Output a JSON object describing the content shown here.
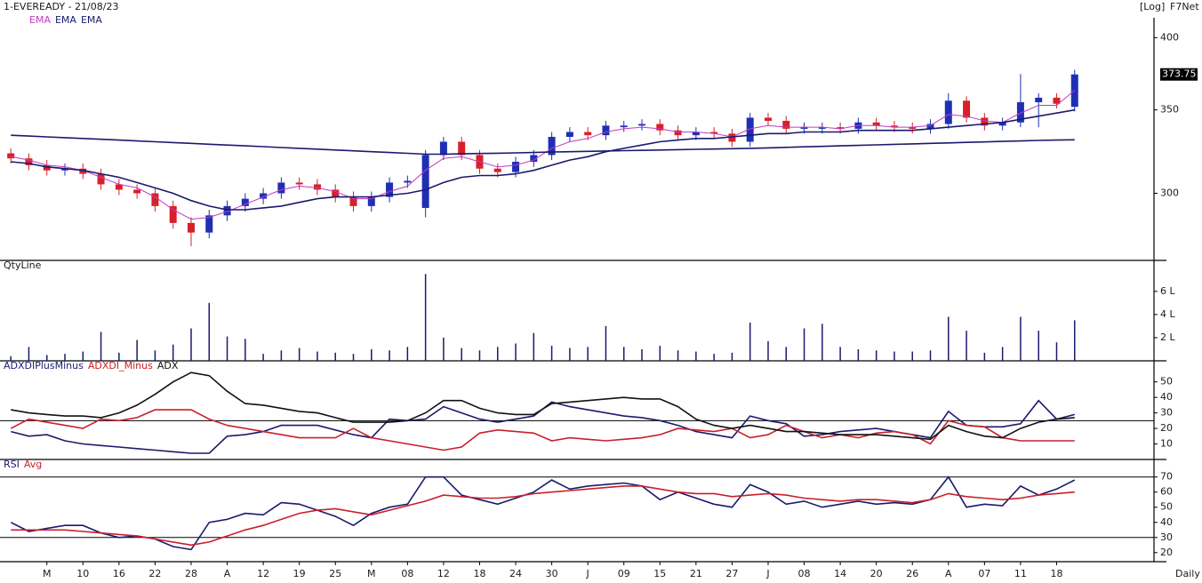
{
  "chart_data": [
    {
      "type": "candlestick",
      "title": "1-EVEREADY - 21/08/23",
      "scale_label": "[Log]",
      "source": "F7Net",
      "log_scale": true,
      "up_color": "#1f2fb5",
      "down_color": "#d8202a",
      "ylim": [
        265,
        415
      ],
      "yticks": [
        300,
        350,
        400
      ],
      "open": [
        323,
        320,
        316,
        313,
        314,
        311,
        305,
        302,
        300,
        293,
        284,
        279,
        288,
        293,
        297,
        300,
        306,
        305,
        302,
        298,
        293,
        298,
        306,
        292,
        322,
        330,
        322,
        314,
        312,
        318,
        322,
        333,
        336,
        334,
        339,
        340,
        341,
        337,
        334,
        336,
        335,
        330,
        345,
        343,
        338,
        338,
        339,
        338,
        342,
        340,
        339,
        338,
        341,
        356,
        345,
        340,
        342,
        355,
        358,
        352
      ],
      "high": [
        326,
        323,
        319,
        317,
        317,
        314,
        308,
        305,
        303,
        296,
        287,
        291,
        296,
        300,
        303,
        309,
        309,
        308,
        305,
        301,
        301,
        309,
        310,
        325,
        333,
        333,
        325,
        317,
        321,
        325,
        336,
        339,
        339,
        343,
        343,
        344,
        344,
        340,
        339,
        339,
        338,
        348,
        348,
        346,
        342,
        342,
        342,
        345,
        345,
        343,
        342,
        344,
        361,
        359,
        348,
        345,
        374,
        361,
        361,
        377
      ],
      "low": [
        317,
        313,
        310,
        310,
        308,
        302,
        299,
        297,
        290,
        281,
        272,
        276,
        285,
        290,
        294,
        297,
        302,
        299,
        295,
        290,
        290,
        295,
        303,
        287,
        319,
        319,
        311,
        309,
        309,
        315,
        319,
        330,
        331,
        331,
        336,
        337,
        334,
        331,
        331,
        332,
        327,
        327,
        340,
        335,
        335,
        335,
        335,
        335,
        337,
        336,
        335,
        335,
        338,
        342,
        337,
        337,
        339,
        339,
        351,
        349
      ],
      "close": [
        320,
        316,
        313,
        314,
        311,
        305,
        302,
        300,
        293,
        284,
        279,
        288,
        293,
        297,
        300,
        306,
        305,
        302,
        298,
        293,
        298,
        306,
        307,
        322,
        330,
        322,
        314,
        312,
        318,
        322,
        333,
        336,
        334,
        340,
        340,
        341,
        337,
        334,
        336,
        335,
        330,
        345,
        343,
        338,
        339,
        339,
        338,
        342,
        340,
        339,
        338,
        341,
        356,
        345,
        340,
        342,
        355,
        358,
        354,
        373.75
      ],
      "series": [
        {
          "name": "EMA",
          "color": "#c03cc0",
          "values": [
            321,
            319,
            316,
            315,
            313,
            309,
            305,
            303,
            298,
            291,
            286,
            287,
            290,
            294,
            298,
            302,
            304,
            303,
            301,
            297,
            297,
            301,
            304,
            313,
            320,
            321,
            318,
            315,
            316,
            319,
            326,
            330,
            332,
            336,
            338,
            339,
            338,
            336,
            336,
            335,
            333,
            338,
            340,
            339,
            339,
            339,
            338,
            340,
            340,
            339,
            339,
            340,
            347,
            346,
            343,
            342,
            348,
            353,
            353,
            363
          ]
        },
        {
          "name": "EMA",
          "color": "#1a1a6e",
          "values": [
            318,
            317,
            315,
            314,
            313,
            311,
            309,
            306,
            303,
            300,
            296,
            293,
            291,
            291,
            292,
            293,
            295,
            297,
            298,
            298,
            298,
            299,
            300,
            302,
            306,
            309,
            310,
            310,
            311,
            313,
            316,
            319,
            321,
            324,
            326,
            328,
            330,
            331,
            332,
            332,
            333,
            334,
            335,
            335,
            336,
            336,
            336,
            337,
            337,
            337,
            337,
            338,
            339,
            340,
            341,
            342,
            344,
            346,
            348,
            350
          ]
        },
        {
          "name": "EMA",
          "color": "#1a1a6e",
          "values": [
            334,
            333.5,
            333,
            332.5,
            332,
            331.5,
            331,
            330.5,
            330,
            329.5,
            329,
            328.5,
            328,
            327.5,
            327,
            326.5,
            326,
            325.5,
            325,
            324.5,
            324,
            323.5,
            323,
            322.5,
            322.5,
            322.7,
            322.9,
            323.1,
            323.3,
            323.5,
            323.8,
            324,
            324.2,
            324.4,
            324.6,
            324.8,
            325,
            325.2,
            325.4,
            325.6,
            325.8,
            326,
            326.3,
            326.6,
            326.9,
            327.2,
            327.5,
            327.8,
            328.1,
            328.4,
            328.7,
            329,
            329.3,
            329.6,
            329.9,
            330.2,
            330.5,
            330.8,
            331,
            331.2
          ]
        }
      ]
    },
    {
      "type": "bar",
      "title": "QtyLine",
      "color": "#1a1a6e",
      "ylim": [
        0,
        7.6
      ],
      "yticks": [
        {
          "value": 2,
          "label": "2 L"
        },
        {
          "value": 4,
          "label": "4 L"
        },
        {
          "value": 6,
          "label": "6 L"
        }
      ],
      "values": [
        0.4,
        1.2,
        0.5,
        0.6,
        0.8,
        2.5,
        0.7,
        1.8,
        0.9,
        1.4,
        2.8,
        5,
        2.1,
        1.9,
        0.6,
        0.9,
        1.1,
        0.8,
        0.7,
        0.6,
        1,
        0.9,
        1.2,
        7.5,
        2,
        1.1,
        0.9,
        1.2,
        1.5,
        2.4,
        1.3,
        1.1,
        1.2,
        3,
        1.2,
        1,
        1.3,
        0.9,
        0.8,
        0.6,
        0.7,
        3.3,
        1.7,
        1.2,
        2.8,
        3.2,
        1.2,
        1,
        0.9,
        0.8,
        0.8,
        0.9,
        3.8,
        2.6,
        0.7,
        1.2,
        3.8,
        2.6,
        1.6,
        3.5
      ]
    },
    {
      "type": "line",
      "ylim": [
        0,
        63
      ],
      "yticks": [
        10,
        20,
        30,
        40,
        50
      ],
      "reference_lines": [
        25
      ],
      "series": [
        {
          "name": "ADXDIPlusMinus",
          "color": "#1a1a6e",
          "values": [
            18,
            15,
            16,
            12,
            10,
            9,
            8,
            7,
            6,
            5,
            4,
            4,
            15,
            16,
            18,
            22,
            22,
            22,
            19,
            16,
            14,
            26,
            25,
            26,
            34,
            30,
            26,
            24,
            26,
            28,
            37,
            34,
            32,
            30,
            28,
            27,
            25,
            22,
            18,
            16,
            14,
            28,
            25,
            23,
            15,
            16,
            18,
            19,
            20,
            18,
            16,
            14,
            31,
            22,
            21,
            21,
            23,
            38,
            26,
            29
          ]
        },
        {
          "name": "ADXDI_Minus",
          "color": "#c8202a",
          "values": [
            20,
            26,
            24,
            22,
            20,
            26,
            25,
            27,
            32,
            32,
            32,
            26,
            22,
            20,
            18,
            16,
            14,
            14,
            14,
            20,
            14,
            12,
            10,
            8,
            6,
            8,
            17,
            19,
            18,
            17,
            12,
            14,
            13,
            12,
            13,
            14,
            16,
            20,
            19,
            18,
            20,
            14,
            16,
            22,
            18,
            14,
            16,
            14,
            17,
            18,
            16,
            10,
            25,
            22,
            21,
            14,
            12,
            12,
            12,
            12
          ]
        },
        {
          "name": "ADX",
          "color": "#111111",
          "values": [
            32,
            30,
            29,
            28,
            28,
            27,
            30,
            35,
            42,
            50,
            56,
            54,
            44,
            36,
            35,
            33,
            31,
            30,
            27,
            24,
            24,
            24,
            25,
            30,
            38,
            38,
            33,
            30,
            29,
            29,
            36,
            37,
            38,
            39,
            40,
            39,
            39,
            34,
            26,
            22,
            20,
            22,
            20,
            18,
            18,
            17,
            16,
            16,
            16,
            15,
            14,
            13,
            22,
            18,
            15,
            14,
            20,
            24,
            26,
            27
          ]
        }
      ]
    },
    {
      "type": "line",
      "ylim": [
        14,
        81
      ],
      "yticks": [
        20,
        30,
        40,
        50,
        60,
        70
      ],
      "reference_lines": [
        30,
        70
      ],
      "xlim": [
        -0.6,
        63.4
      ],
      "xlabel": "Daily",
      "xticks": [
        {
          "value": 2,
          "label": "M"
        },
        {
          "value": 4,
          "label": "10"
        },
        {
          "value": 6,
          "label": "16"
        },
        {
          "value": 8,
          "label": "22"
        },
        {
          "value": 10,
          "label": "28"
        },
        {
          "value": 12,
          "label": "A"
        },
        {
          "value": 14,
          "label": "12"
        },
        {
          "value": 16,
          "label": "19"
        },
        {
          "value": 18,
          "label": "25"
        },
        {
          "value": 20,
          "label": "M"
        },
        {
          "value": 22,
          "label": "08"
        },
        {
          "value": 24,
          "label": "12"
        },
        {
          "value": 26,
          "label": "18"
        },
        {
          "value": 28,
          "label": "24"
        },
        {
          "value": 30,
          "label": "30"
        },
        {
          "value": 32,
          "label": "J"
        },
        {
          "value": 34,
          "label": "09"
        },
        {
          "value": 36,
          "label": "15"
        },
        {
          "value": 38,
          "label": "21"
        },
        {
          "value": 40,
          "label": "27"
        },
        {
          "value": 42,
          "label": "J"
        },
        {
          "value": 44,
          "label": "08"
        },
        {
          "value": 46,
          "label": "14"
        },
        {
          "value": 48,
          "label": "20"
        },
        {
          "value": 50,
          "label": "26"
        },
        {
          "value": 52,
          "label": "A"
        },
        {
          "value": 54,
          "label": "07"
        },
        {
          "value": 56,
          "label": "11"
        },
        {
          "value": 58,
          "label": "18"
        }
      ],
      "series": [
        {
          "name": "RSI",
          "color": "#1a1a6e",
          "values": [
            40,
            34,
            36,
            38,
            38,
            33,
            30,
            31,
            29,
            24,
            22,
            40,
            42,
            46,
            45,
            53,
            52,
            48,
            44,
            38,
            46,
            50,
            52,
            70,
            70,
            58,
            55,
            52,
            56,
            60,
            68,
            62,
            64,
            65,
            66,
            64,
            55,
            60,
            56,
            52,
            50,
            65,
            60,
            52,
            54,
            50,
            52,
            54,
            52,
            53,
            52,
            55,
            70,
            50,
            52,
            51,
            64,
            58,
            62,
            68
          ]
        },
        {
          "name": "Avg",
          "color": "#c8202a",
          "values": [
            35,
            35,
            35,
            35,
            34,
            33,
            32,
            31,
            29,
            27,
            25,
            27,
            31,
            35,
            38,
            42,
            46,
            48,
            49,
            47,
            45,
            48,
            51,
            54,
            58,
            57,
            56,
            56,
            57,
            59,
            60,
            61,
            62,
            63,
            64,
            64,
            62,
            60,
            59,
            59,
            57,
            58,
            59,
            58,
            56,
            55,
            54,
            55,
            55,
            54,
            53,
            55,
            59,
            57,
            56,
            55,
            56,
            58,
            59,
            60
          ]
        }
      ]
    }
  ]
}
